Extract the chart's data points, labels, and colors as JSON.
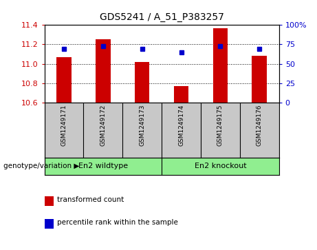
{
  "title": "GDS5241 / A_51_P383257",
  "samples": [
    "GSM1249171",
    "GSM1249172",
    "GSM1249173",
    "GSM1249174",
    "GSM1249175",
    "GSM1249176"
  ],
  "red_values": [
    11.07,
    11.255,
    11.02,
    10.77,
    11.37,
    11.08
  ],
  "blue_values": [
    11.155,
    11.182,
    11.152,
    11.115,
    11.182,
    11.155
  ],
  "ylim_left": [
    10.6,
    11.4
  ],
  "ylim_right": [
    0,
    100
  ],
  "yticks_left": [
    10.6,
    10.8,
    11.0,
    11.2,
    11.4
  ],
  "yticks_right": [
    0,
    25,
    50,
    75,
    100
  ],
  "groups": [
    {
      "label": "En2 wildtype",
      "indices": [
        0,
        1,
        2
      ]
    },
    {
      "label": "En2 knockout",
      "indices": [
        3,
        4,
        5
      ]
    }
  ],
  "genotype_label": "genotype/variation",
  "legend_red": "transformed count",
  "legend_blue": "percentile rank within the sample",
  "bar_color": "#CC0000",
  "dot_color": "#0000CC",
  "bg_color": "#C8C8C8",
  "group_color": "#90EE90",
  "plot_bg": "#FFFFFF"
}
